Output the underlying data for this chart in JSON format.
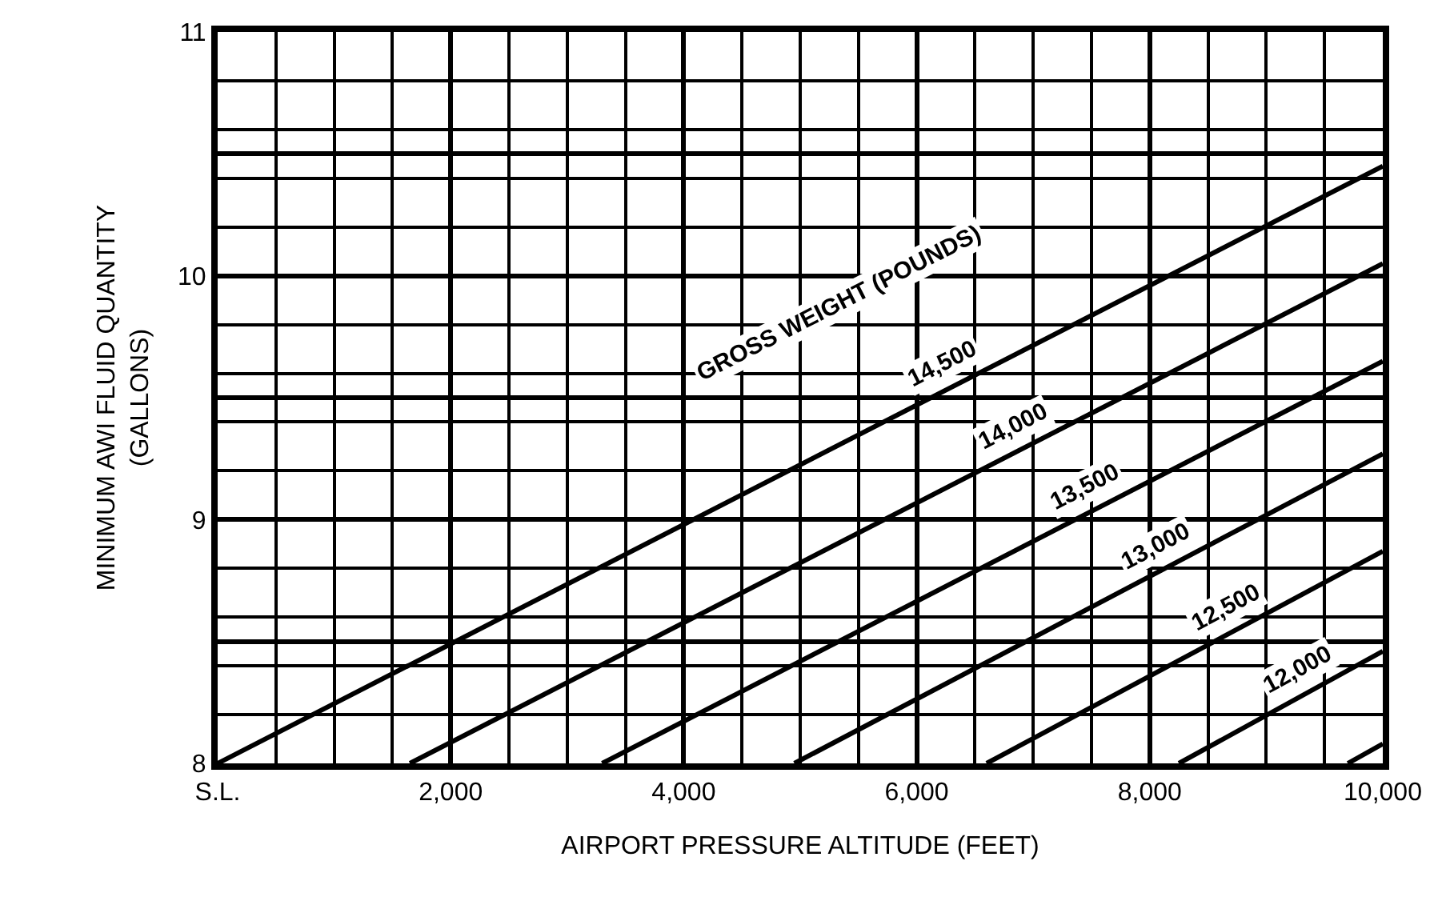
{
  "chart_data": {
    "type": "line",
    "xlabel": "AIRPORT PRESSURE ALTITUDE (FEET)",
    "ylabel": "MINIMUM AWI FLUID QUANTITY\n(GALLONS)",
    "xlim": [
      0,
      10000
    ],
    "ylim": [
      8,
      11
    ],
    "xticks": [
      {
        "value": 0,
        "label": "S.L."
      },
      {
        "value": 2000,
        "label": "2,000"
      },
      {
        "value": 4000,
        "label": "4,000"
      },
      {
        "value": 6000,
        "label": "6,000"
      },
      {
        "value": 8000,
        "label": "8,000"
      },
      {
        "value": 10000,
        "label": "10,000"
      }
    ],
    "yticks": [
      8,
      {
        "value": 8.5,
        "label": null
      },
      9,
      {
        "value": 9.5,
        "label": null
      },
      10,
      {
        "value": 10.5,
        "label": null
      },
      11
    ],
    "grid": true,
    "legend": false,
    "marker": "none",
    "line_style": "solid",
    "annotations": [
      "GROSS WEIGHT (POUNDS)"
    ],
    "series": [
      {
        "name": "14,500",
        "color": "#000000",
        "x": [
          0,
          10000
        ],
        "values": [
          8,
          10.45
        ]
      },
      {
        "name": "14,000",
        "color": "#000000",
        "x": [
          1650,
          10000
        ],
        "values": [
          8,
          10.05
        ]
      },
      {
        "name": "13,500",
        "color": "#000000",
        "x": [
          3300,
          10000
        ],
        "values": [
          8,
          9.65
        ]
      },
      {
        "name": "13,000",
        "color": "#000000",
        "x": [
          4950,
          10000
        ],
        "values": [
          8,
          9.27
        ]
      },
      {
        "name": "12,500",
        "color": "#000000",
        "x": [
          6600,
          10000
        ],
        "values": [
          8,
          8.87
        ]
      },
      {
        "name": "12,000",
        "color": "#000000",
        "x": [
          8250,
          10000
        ],
        "values": [
          8,
          8.46
        ]
      },
      {
        "color": "#000000",
        "x": [
          9700,
          10000
        ],
        "values": [
          8,
          8.08
        ]
      }
    ]
  }
}
